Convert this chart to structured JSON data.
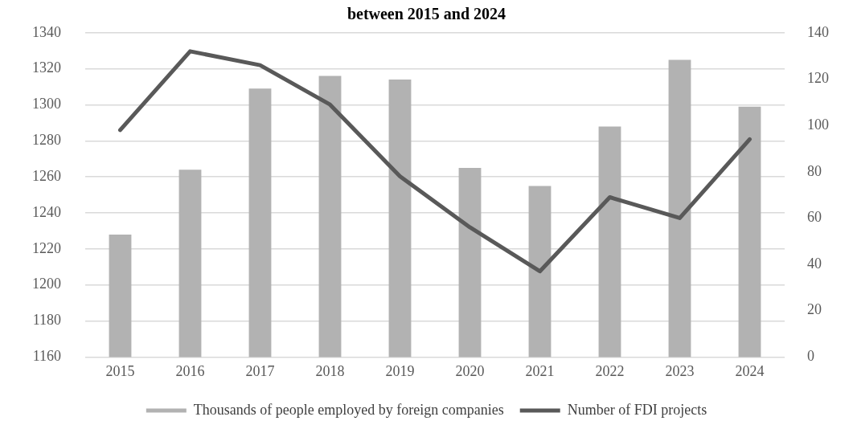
{
  "chart_data": {
    "type": "bar",
    "title": "between 2015 and 2024",
    "categories": [
      "2015",
      "2016",
      "2017",
      "2018",
      "2019",
      "2020",
      "2021",
      "2022",
      "2023",
      "2024"
    ],
    "series": [
      {
        "name": "Thousands of people employed by foreign companies",
        "color": "#b2b2b2",
        "values": [
          1228,
          1264,
          1309,
          1316,
          1314,
          1265,
          1255,
          1288,
          1325,
          1299
        ]
      },
      {
        "name": "Number of FDI projects",
        "type": "line",
        "axis": "y2",
        "color": "#595959",
        "values": [
          98,
          132,
          126,
          109,
          78,
          56,
          37,
          69,
          60,
          94
        ]
      }
    ],
    "ylim": [
      1160,
      1340
    ],
    "yticks": [
      1160,
      1180,
      1200,
      1220,
      1240,
      1260,
      1280,
      1300,
      1320,
      1340
    ],
    "y2lim": [
      0,
      140
    ],
    "y2ticks": [
      0,
      20,
      40,
      60,
      80,
      100,
      120,
      140
    ],
    "grid": "y",
    "legend": "bottom",
    "marker": "none"
  }
}
